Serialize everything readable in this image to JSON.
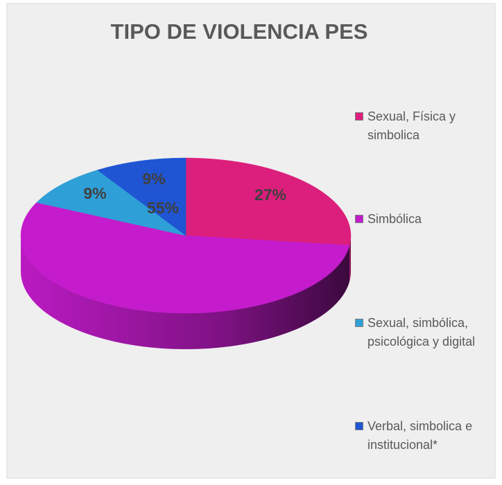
{
  "chart_data": {
    "type": "pie",
    "title": "TIPO DE VIOLENCIA PES",
    "categories": [
      "Sexual, Física y simbolica",
      "Simbólica",
      "Sexual, simbólica, psicológica y digital",
      "Verbal, simbolica e institucional*"
    ],
    "values": [
      27,
      55,
      9,
      9
    ],
    "value_labels": [
      "27%",
      "55%",
      "9%",
      "9%"
    ],
    "colors": [
      "#dc1f7c",
      "#c41ccc",
      "#2f9fd8",
      "#1f55d2"
    ],
    "legend": "right"
  }
}
